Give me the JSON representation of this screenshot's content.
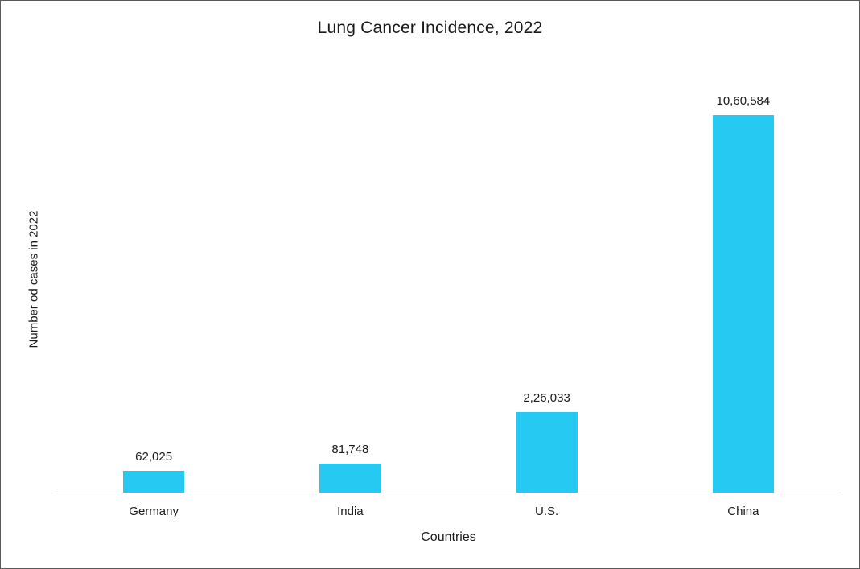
{
  "chart_data": {
    "type": "bar",
    "title": "Lung Cancer Incidence, 2022",
    "xlabel": "Countries",
    "ylabel": "Number od cases in 2022",
    "categories": [
      "Germany",
      "India",
      "U.S.",
      "China"
    ],
    "values": [
      62025,
      81748,
      226033,
      1060584
    ],
    "data_labels": [
      "62,025",
      "81,748",
      "2,26,033",
      "10,60,584"
    ],
    "bar_color": "#25c9f2",
    "ylim": [
      0,
      1060584
    ],
    "grid": false,
    "legend": false,
    "axis_line_color": "#d9d9d9"
  }
}
